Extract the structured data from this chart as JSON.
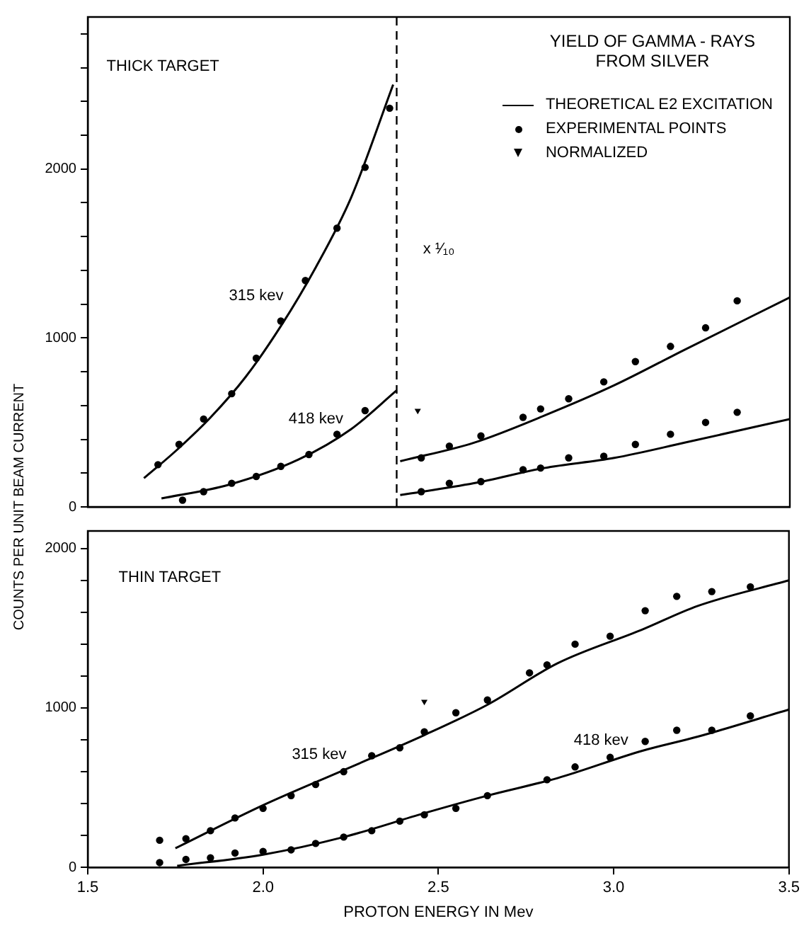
{
  "chart_data": [
    {
      "type": "line",
      "title": "YIELD OF GAMMA - RAYS FROM SILVER",
      "ylabel": "COUNTS PER UNIT BEAM CURRENT",
      "xlim": [
        1.5,
        3.5
      ],
      "ylim": [
        0,
        2900
      ],
      "yticks": [
        0,
        {
          "value": 200,
          "label": null
        },
        {
          "value": 400,
          "label": null
        },
        {
          "value": 600,
          "label": null
        },
        {
          "value": 800,
          "label": null
        },
        1000,
        {
          "value": 1200,
          "label": null
        },
        {
          "value": 1400,
          "label": null
        },
        {
          "value": 1600,
          "label": null
        },
        {
          "value": 1800,
          "label": null
        },
        2000,
        {
          "value": 2200,
          "label": null
        },
        {
          "value": 2400,
          "label": null
        },
        {
          "value": 2600,
          "label": null
        },
        {
          "value": 2800,
          "label": null
        }
      ],
      "tick_labels": "y",
      "grid": false,
      "legend": "top right",
      "annotations": [
        "THICK TARGET",
        "315 kev",
        "418 kev",
        "x ¹⁄₁₀"
      ],
      "ref_lines": [
        {
          "axis": "x",
          "value": 2.38,
          "label": null,
          "color": "#000000",
          "line_style": "dashed"
        }
      ],
      "series": [
        {
          "name": "THEORETICAL E2 EXCITATION",
          "color": "#000000",
          "marker": "none",
          "line_style": "solid",
          "x": [
            1.66,
            1.75,
            1.85,
            1.95,
            2.05,
            2.15,
            2.25,
            2.37
          ],
          "values": [
            170,
            330,
            530,
            770,
            1070,
            1420,
            1830,
            2500
          ]
        },
        {
          "type": "scatter",
          "name": "EXPERIMENTAL POINTS",
          "color": "#000000",
          "marker": "circle",
          "x": [
            1.7,
            1.76,
            1.83,
            1.91,
            1.98,
            2.05,
            2.12,
            2.21,
            2.29,
            2.36
          ],
          "values": [
            250,
            370,
            520,
            670,
            880,
            1100,
            1340,
            1650,
            2010,
            2360
          ]
        },
        {
          "color": "#000000",
          "marker": "none",
          "line_style": "solid",
          "x": [
            1.71,
            1.9,
            2.1,
            2.25,
            2.38
          ],
          "values": [
            50,
            130,
            280,
            460,
            690
          ]
        },
        {
          "type": "scatter",
          "color": "#000000",
          "marker": "circle",
          "x": [
            1.77,
            1.83,
            1.91,
            1.98,
            2.05,
            2.13,
            2.21,
            2.29
          ],
          "values": [
            40,
            90,
            140,
            180,
            240,
            310,
            430,
            570
          ]
        },
        {
          "color": "#000000",
          "marker": "none",
          "line_style": "solid",
          "x": [
            2.39,
            2.6,
            2.8,
            3.0,
            3.2,
            3.5
          ],
          "values": [
            270,
            380,
            540,
            720,
            930,
            1240
          ]
        },
        {
          "type": "scatter",
          "color": "#000000",
          "marker": "circle",
          "x": [
            2.45,
            2.53,
            2.62,
            2.74,
            2.79,
            2.87,
            2.97,
            3.06,
            3.16,
            3.26,
            3.35
          ],
          "values": [
            290,
            360,
            420,
            530,
            580,
            640,
            740,
            860,
            950,
            1060,
            1220
          ]
        },
        {
          "color": "#000000",
          "marker": "none",
          "line_style": "solid",
          "x": [
            2.39,
            2.6,
            2.8,
            3.0,
            3.2,
            3.5
          ],
          "values": [
            70,
            140,
            230,
            290,
            380,
            520
          ]
        },
        {
          "type": "scatter",
          "color": "#000000",
          "marker": "circle",
          "x": [
            2.45,
            2.53,
            2.62,
            2.74,
            2.79,
            2.87,
            2.97,
            3.06,
            3.16,
            3.26,
            3.35
          ],
          "values": [
            90,
            140,
            150,
            220,
            230,
            290,
            300,
            370,
            430,
            500,
            560
          ]
        },
        {
          "type": "scatter",
          "name": "NORMALIZED",
          "color": "#000000",
          "marker": "triangle",
          "x": [
            2.44
          ],
          "values": [
            570
          ]
        }
      ]
    },
    {
      "type": "line",
      "xlabel": "PROTON ENERGY IN Mev",
      "xlim": [
        1.5,
        3.5
      ],
      "ylim": [
        0,
        2110
      ],
      "xticks": [
        {
          "value": 1.5,
          "label": "1.5"
        },
        {
          "value": 2,
          "label": "2.0"
        },
        {
          "value": 2.5,
          "label": "2.5"
        },
        {
          "value": 3,
          "label": "3.0"
        },
        {
          "value": 3.5,
          "label": "3.5"
        }
      ],
      "yticks": [
        0,
        {
          "value": 200,
          "label": null
        },
        {
          "value": 400,
          "label": null
        },
        {
          "value": 600,
          "label": null
        },
        {
          "value": 800,
          "label": null
        },
        1000,
        {
          "value": 1200,
          "label": null
        },
        {
          "value": 1400,
          "label": null
        },
        {
          "value": 1600,
          "label": null
        },
        {
          "value": 1800,
          "label": null
        },
        2000
      ],
      "grid": false,
      "annotations": [
        "THIN TARGET",
        "315 kev",
        "418 kev"
      ],
      "series": [
        {
          "color": "#000000",
          "marker": "none",
          "line_style": "solid",
          "x": [
            1.75,
            2.0,
            2.23,
            2.46,
            2.64,
            2.84,
            3.08,
            3.24,
            3.5
          ],
          "values": [
            120,
            390,
            610,
            830,
            1020,
            1280,
            1490,
            1640,
            1800
          ]
        },
        {
          "type": "scatter",
          "color": "#000000",
          "marker": "circle",
          "x": [
            1.705,
            1.78,
            1.85,
            1.92,
            2.0,
            2.08,
            2.15,
            2.23,
            2.31,
            2.39,
            2.46,
            2.55,
            2.64,
            2.76,
            2.81,
            2.89,
            2.99,
            3.09,
            3.18,
            3.28,
            3.39
          ],
          "values": [
            170,
            180,
            230,
            310,
            370,
            450,
            520,
            600,
            700,
            750,
            850,
            970,
            1050,
            1220,
            1270,
            1400,
            1450,
            1610,
            1700,
            1730,
            1760
          ]
        },
        {
          "type": "scatter",
          "color": "#000000",
          "marker": "triangle",
          "x": [
            2.46
          ],
          "values": [
            1040
          ]
        },
        {
          "color": "#000000",
          "marker": "none",
          "line_style": "solid",
          "x": [
            1.755,
            2.0,
            2.23,
            2.46,
            2.64,
            2.84,
            3.08,
            3.24,
            3.5
          ],
          "values": [
            10,
            80,
            190,
            340,
            450,
            560,
            730,
            820,
            990
          ]
        },
        {
          "type": "scatter",
          "color": "#000000",
          "marker": "circle",
          "x": [
            1.705,
            1.78,
            1.85,
            1.92,
            2.0,
            2.08,
            2.15,
            2.23,
            2.31,
            2.39,
            2.46,
            2.55,
            2.64,
            2.81,
            2.89,
            2.99,
            3.09,
            3.18,
            3.28,
            3.39
          ],
          "values": [
            30,
            50,
            60,
            90,
            100,
            110,
            150,
            190,
            230,
            290,
            330,
            370,
            450,
            550,
            630,
            690,
            790,
            860,
            860,
            950
          ]
        }
      ]
    }
  ]
}
